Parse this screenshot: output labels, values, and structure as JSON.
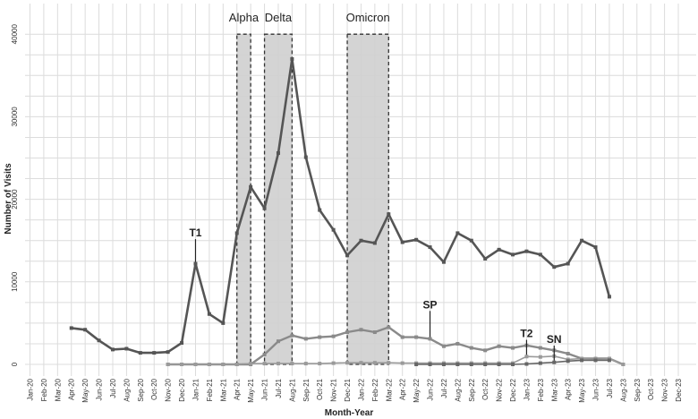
{
  "chart_data": {
    "type": "line",
    "xlabel": "Month-Year",
    "ylabel": "Number of Visits",
    "ylim": [
      0,
      40000
    ],
    "yticks": [
      0,
      10000,
      20000,
      30000,
      40000
    ],
    "grid": true,
    "categories": [
      "Jan-20",
      "Feb-20",
      "Mar-20",
      "Apr-20",
      "May-20",
      "Jun-20",
      "Jul-20",
      "Aug-20",
      "Sep-20",
      "Oct-20",
      "Nov-20",
      "Dec-20",
      "Jan-21",
      "Feb-21",
      "Mar-21",
      "Apr-21",
      "May-21",
      "Jun-21",
      "Jul-21",
      "Aug-21",
      "Sep-21",
      "Oct-21",
      "Nov-21",
      "Dec-21",
      "Jan-22",
      "Feb-22",
      "Mar-22",
      "Apr-22",
      "May-22",
      "Jun-22",
      "Jul-22",
      "Aug-22",
      "Sep-22",
      "Oct-22",
      "Nov-22",
      "Dec-22",
      "Jan-23",
      "Feb-23",
      "Mar-23",
      "Apr-23",
      "May-23",
      "Jun-23",
      "Jul-23",
      "Aug-23",
      "Sep-23",
      "Oct-23",
      "Nov-23",
      "Dec-23"
    ],
    "series": [
      {
        "color": "#555555",
        "width": 2.6,
        "values": [
          null,
          null,
          null,
          4400,
          4200,
          2900,
          1800,
          1900,
          1400,
          1400,
          1500,
          2600,
          12200,
          6100,
          5000,
          15900,
          21500,
          18900,
          25600,
          37000,
          25100,
          18700,
          16300,
          13200,
          15000,
          14700,
          18200,
          14800,
          15100,
          14200,
          12400,
          15900,
          15000,
          12800,
          13900,
          13300,
          13700,
          13300,
          11800,
          12200,
          15000,
          14200,
          8200,
          null,
          null,
          null,
          null,
          null
        ]
      },
      {
        "color": "#8a8a8a",
        "width": 2.4,
        "values": [
          null,
          null,
          null,
          null,
          null,
          null,
          null,
          null,
          null,
          null,
          0,
          0,
          0,
          0,
          0,
          0,
          0,
          1200,
          2800,
          3500,
          3100,
          3300,
          3400,
          3900,
          4200,
          3900,
          4500,
          3300,
          3300,
          3100,
          2200,
          2500,
          2000,
          1700,
          2200,
          2000,
          2300,
          2000,
          1700,
          1300,
          700,
          700,
          700,
          0,
          null,
          null,
          null,
          null
        ]
      },
      {
        "color": "#9a9a9a",
        "width": 1.6,
        "values": [
          null,
          null,
          null,
          null,
          null,
          null,
          null,
          null,
          null,
          null,
          0,
          0,
          0,
          0,
          0,
          0,
          100,
          100,
          100,
          100,
          100,
          100,
          150,
          200,
          200,
          200,
          200,
          150,
          150,
          150,
          150,
          150,
          150,
          150,
          150,
          150,
          950,
          900,
          1000,
          600,
          700,
          600,
          700,
          0,
          null,
          null,
          null,
          null
        ]
      },
      {
        "color": "#666666",
        "width": 1.6,
        "values": [
          null,
          null,
          null,
          null,
          null,
          null,
          null,
          null,
          null,
          null,
          null,
          null,
          null,
          null,
          null,
          null,
          null,
          null,
          null,
          null,
          null,
          null,
          null,
          null,
          null,
          null,
          null,
          null,
          0,
          0,
          0,
          0,
          0,
          0,
          0,
          0,
          50,
          150,
          250,
          400,
          500,
          500,
          500,
          null,
          null,
          null,
          null,
          null
        ]
      }
    ],
    "bands": [
      {
        "label": "Alpha",
        "start": 15.0,
        "end": 16.0
      },
      {
        "label": "Delta",
        "start": 17.0,
        "end": 19.0
      },
      {
        "label": "Omicron",
        "start": 23.0,
        "end": 26.0
      }
    ],
    "annotations": [
      {
        "label": "T1",
        "x": 12,
        "y": 12200,
        "text_y": 15500
      },
      {
        "label": "SP",
        "x": 29,
        "y": 3100,
        "text_y": 6800
      },
      {
        "label": "T2",
        "x": 36,
        "y": 950,
        "text_y": 3300
      },
      {
        "label": "SN",
        "x": 38,
        "y": 250,
        "text_y": 2600
      }
    ]
  }
}
